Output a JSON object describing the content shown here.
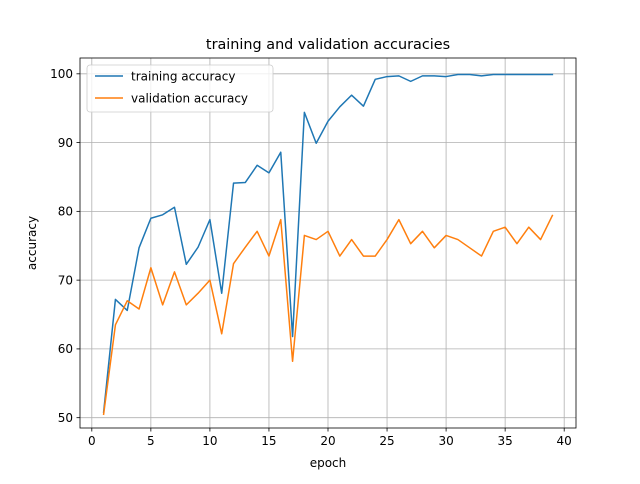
{
  "chart_data": {
    "type": "line",
    "title": "training and validation accuracies",
    "xlabel": "epoch",
    "ylabel": "accuracy",
    "xlim": [
      -1,
      41
    ],
    "ylim": [
      48.5,
      102.3
    ],
    "xticks": [
      0,
      5,
      10,
      15,
      20,
      25,
      30,
      35,
      40
    ],
    "yticks": [
      50,
      60,
      70,
      80,
      90,
      100
    ],
    "grid": true,
    "legend_position": "upper left",
    "x": [
      1,
      2,
      3,
      4,
      5,
      6,
      7,
      8,
      9,
      10,
      11,
      12,
      13,
      14,
      15,
      16,
      17,
      18,
      19,
      20,
      21,
      22,
      23,
      24,
      25,
      26,
      27,
      28,
      29,
      30,
      31,
      32,
      33,
      34,
      35,
      36,
      37,
      38,
      39
    ],
    "series": [
      {
        "name": "training accuracy",
        "color": "#1f77b4",
        "values": [
          50.8,
          67.2,
          65.6,
          74.7,
          79.0,
          79.5,
          80.6,
          72.3,
          74.8,
          78.8,
          68.1,
          84.1,
          84.2,
          86.7,
          85.6,
          88.6,
          61.8,
          94.4,
          89.9,
          93.1,
          95.2,
          96.9,
          95.3,
          99.2,
          99.6,
          99.7,
          98.9,
          99.7,
          99.7,
          99.6,
          99.9,
          99.9,
          99.7,
          99.9,
          99.9,
          99.9,
          99.9,
          99.9,
          99.9
        ]
      },
      {
        "name": "validation accuracy",
        "color": "#ff7f0e",
        "values": [
          50.5,
          63.5,
          67.0,
          65.8,
          71.8,
          66.4,
          71.2,
          66.4,
          68.1,
          70.0,
          62.2,
          72.4,
          74.8,
          77.1,
          73.5,
          78.8,
          58.2,
          76.5,
          75.9,
          77.1,
          73.5,
          75.9,
          73.5,
          73.5,
          75.9,
          78.8,
          75.3,
          77.1,
          74.7,
          76.5,
          75.9,
          74.7,
          73.5,
          77.1,
          77.7,
          75.3,
          77.7,
          75.9,
          79.4
        ]
      }
    ]
  }
}
